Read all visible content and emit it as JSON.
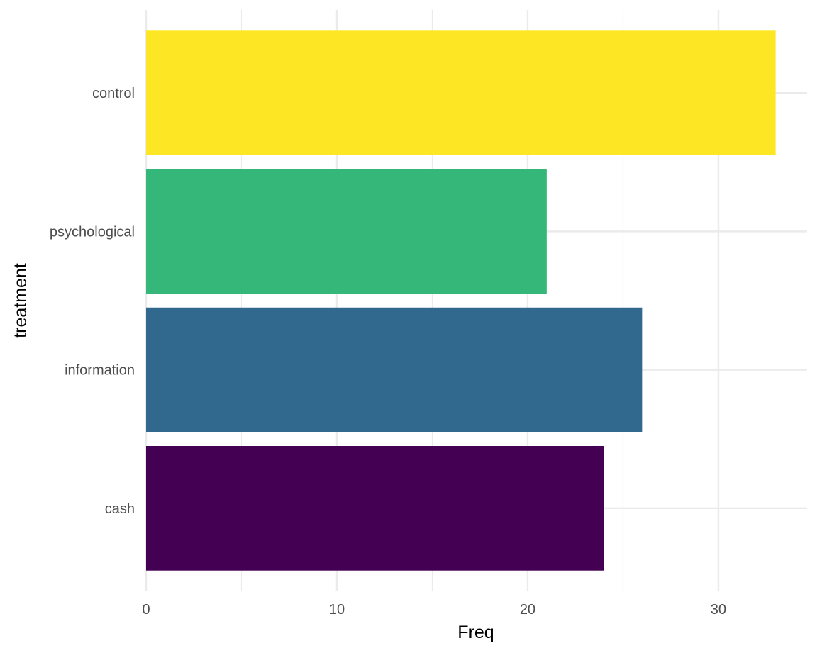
{
  "chart_data": {
    "type": "bar",
    "orientation": "horizontal",
    "categories": [
      "cash",
      "information",
      "psychological",
      "control"
    ],
    "values": [
      24,
      26,
      21,
      33
    ],
    "colors": [
      "#440154",
      "#31688E",
      "#35B779",
      "#FDE725"
    ],
    "xlabel": "Freq",
    "ylabel": "treatment",
    "xlim": [
      0,
      34.65
    ],
    "x_ticks": [
      0,
      10,
      20,
      30
    ],
    "x_tick_labels": [
      "0",
      "10",
      "20",
      "30"
    ],
    "grid": true,
    "legend": "none"
  }
}
